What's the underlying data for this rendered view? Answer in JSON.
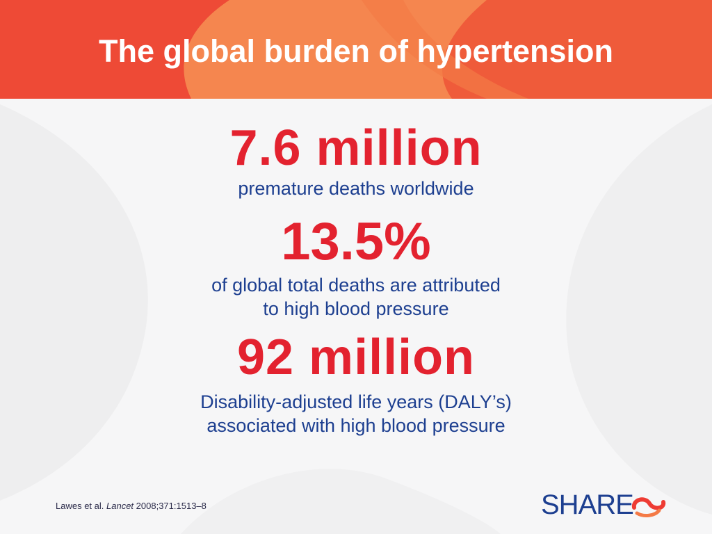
{
  "slide": {
    "title": "The global burden of hypertension"
  },
  "stats": [
    {
      "value": "7.6 million",
      "description": [
        "premature deaths worldwide"
      ]
    },
    {
      "value": "13.5%",
      "description": [
        "of global total deaths are attributed",
        "to high blood pressure"
      ]
    },
    {
      "value": "92 million",
      "description": [
        "Disability-adjusted life years (DALY’s)",
        "associated with high blood pressure"
      ]
    }
  ],
  "citation": {
    "authors": "Lawes et al.",
    "journal": "Lancet",
    "details": "2008;371:1513–8"
  },
  "logo": {
    "text": "SHARE",
    "icon": "ribbon-loop-icon"
  },
  "colors": {
    "header_orange": "#f26a3c",
    "header_red": "#ee4a36",
    "header_light": "#f5864f",
    "stat_red": "#e3222f",
    "text_blue": "#1d3f90",
    "background": "#f6f6f7"
  }
}
